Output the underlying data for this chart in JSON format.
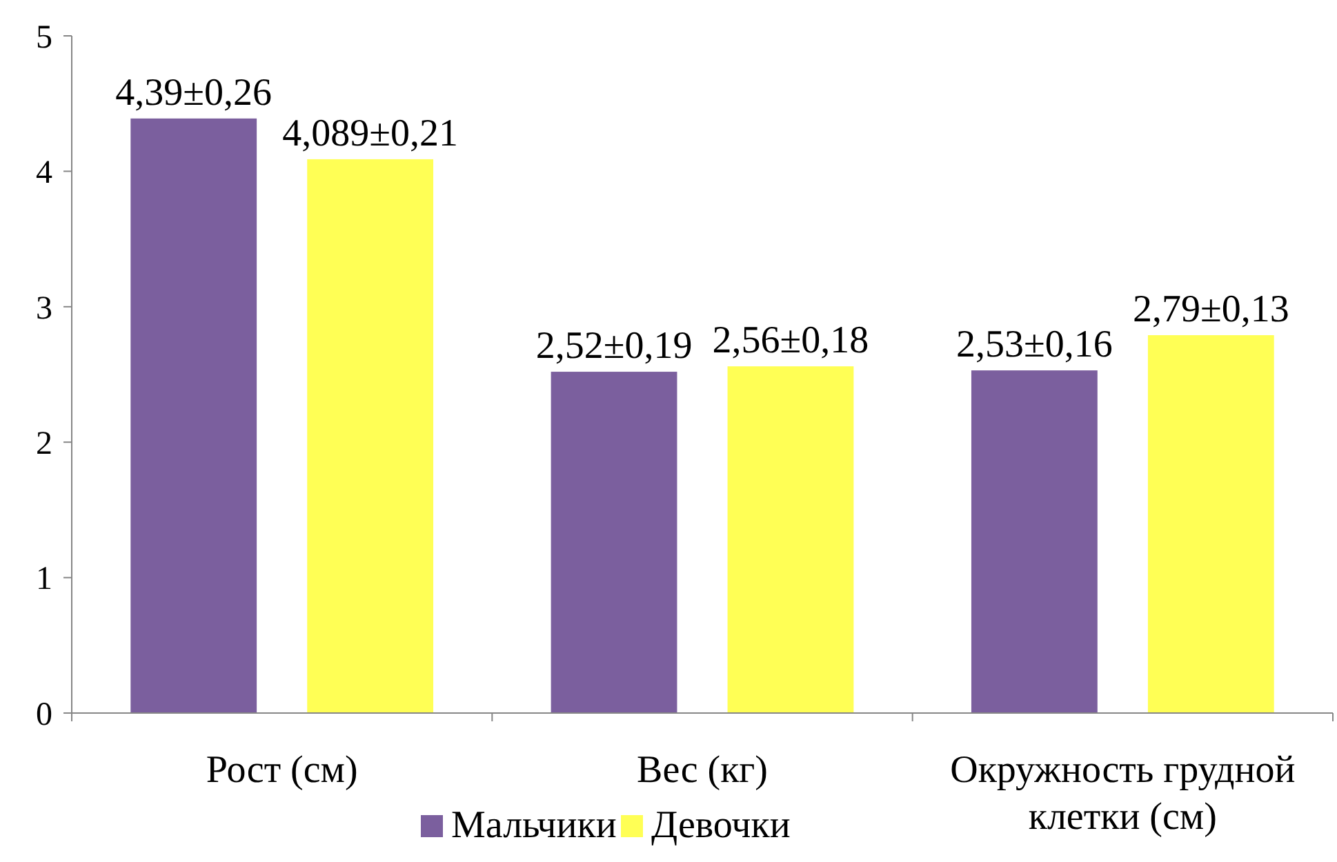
{
  "chart_data": {
    "type": "bar",
    "categories": [
      "Рост (см)",
      "Вес (кг)",
      "Окружность грудной клетки (см)"
    ],
    "series": [
      {
        "name": "Мальчики",
        "color": "#7b5f9e",
        "values": [
          4.39,
          2.52,
          2.53
        ],
        "value_labels": [
          "4,39±0,26",
          "2,52±0,19",
          "2,53±0,16"
        ]
      },
      {
        "name": "Девочки",
        "color": "#ffff55",
        "values": [
          4.089,
          2.56,
          2.79
        ],
        "value_labels": [
          "4,089±0,21",
          "2,56±0,18",
          "2,79±0,13"
        ]
      }
    ],
    "ylim": [
      0,
      5
    ],
    "yticks": [
      0,
      1,
      2,
      3,
      4,
      5
    ],
    "grid": false,
    "legend": "bottom"
  }
}
